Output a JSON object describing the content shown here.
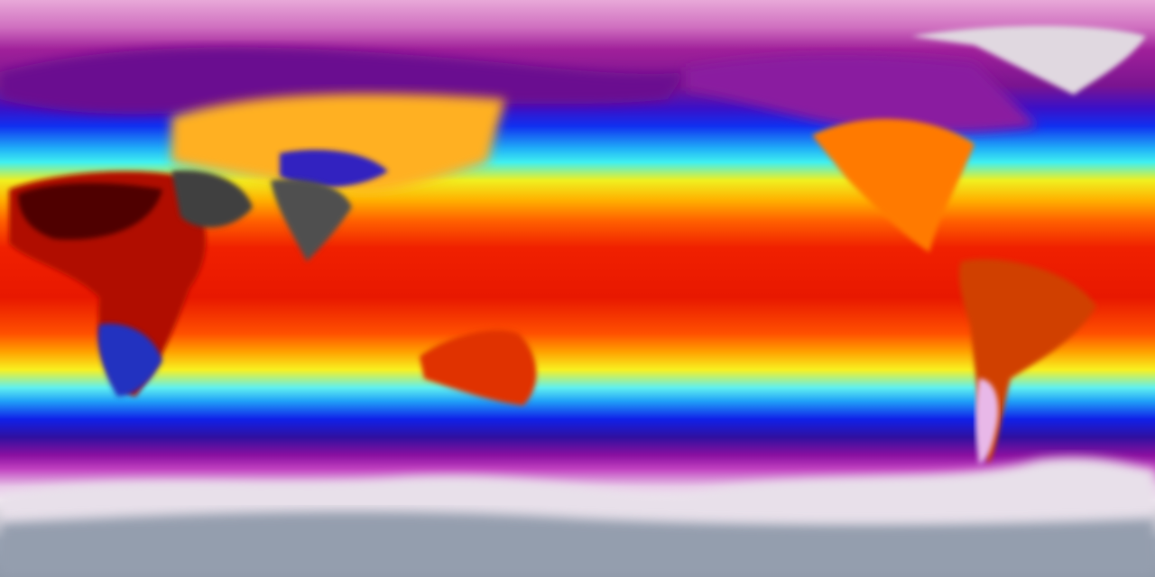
{
  "map": {
    "colors": {
      "polar": "#e8c8e8",
      "cold": "#8a10a0",
      "cool": "#1030f0",
      "mild": "#40f0f0",
      "warm": "#f8f020",
      "hot": "#f02000",
      "very_hot": "#600000",
      "extreme": "#404040",
      "antarctica": "#9aa4b4"
    }
  }
}
